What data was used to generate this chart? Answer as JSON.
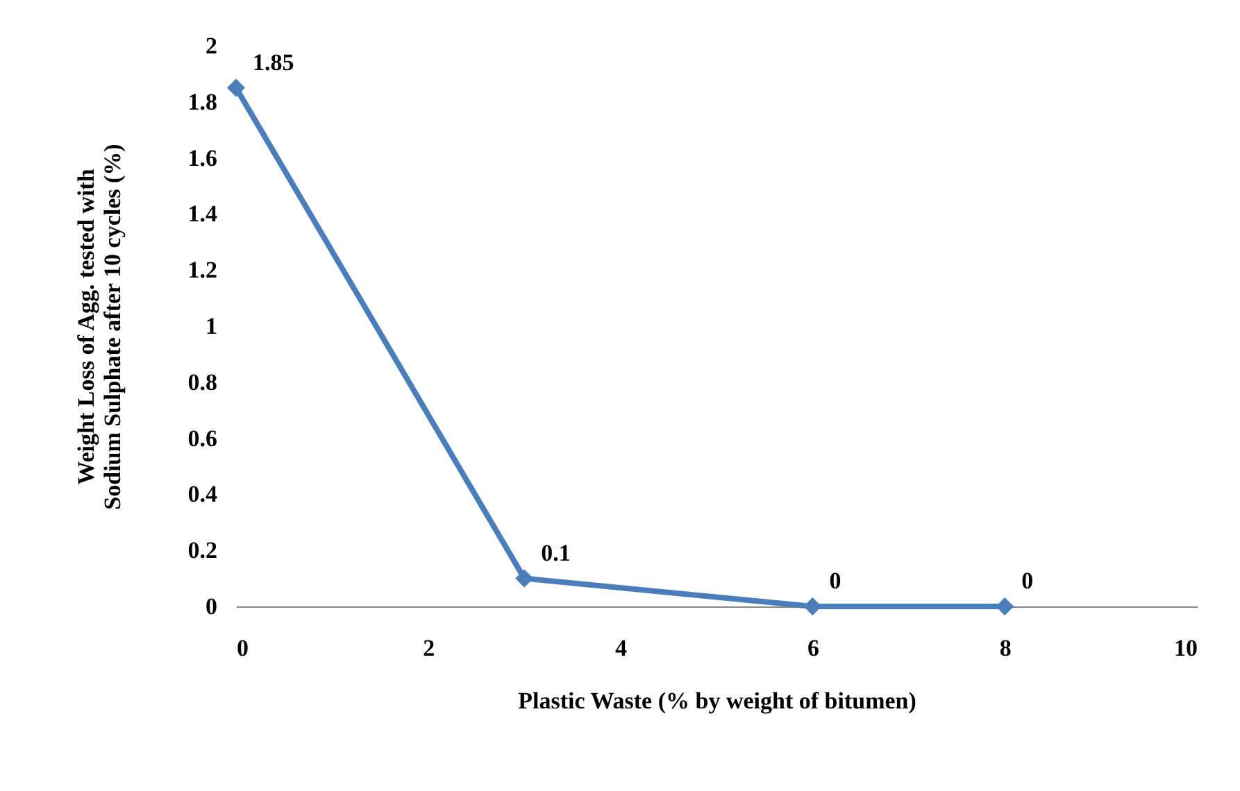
{
  "chart_data": {
    "type": "line",
    "xlabel": "Plastic Waste (% by weight of bitumen)",
    "ylabel": "Weight Loss of Agg. tested with\nSodium Sulphate after 10 cycles (%)",
    "x": [
      0,
      3,
      6,
      8
    ],
    "series": [
      {
        "color": "#4a7ebb",
        "values": [
          1.85,
          0.1,
          0,
          0
        ]
      }
    ],
    "xlim": [
      0,
      10
    ],
    "xticks": [
      0,
      2,
      4,
      6,
      8,
      10
    ],
    "ylim": [
      0,
      2
    ],
    "yticks": [
      0,
      0.2,
      0.4,
      0.6,
      0.8,
      1,
      1.2,
      1.4,
      1.6,
      1.8,
      2
    ],
    "data_labels": true,
    "marker": "diamond",
    "line_style": "solid",
    "grid": false,
    "legend": false
  }
}
